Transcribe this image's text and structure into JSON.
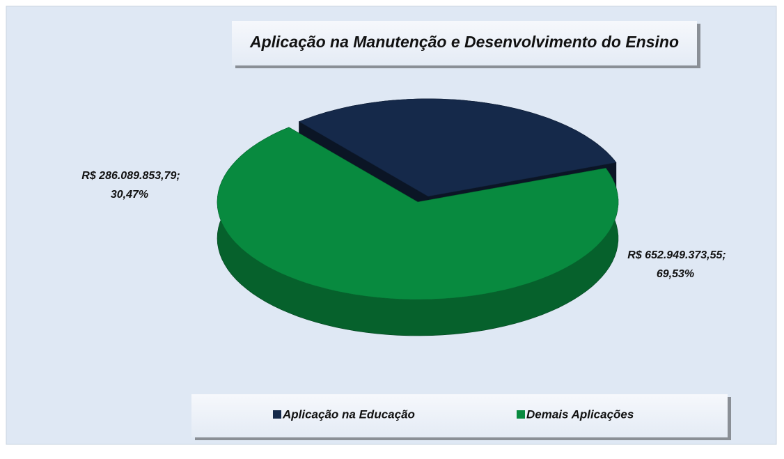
{
  "chart_data": {
    "type": "pie",
    "title": "Aplicação na Manutenção e Desenvolvimento do Ensino",
    "categories": [
      "Aplicação na Educação",
      "Demais Aplicações"
    ],
    "values": [
      286089853.79,
      652949373.55
    ],
    "value_labels": [
      "R$ 286.089.853,79;",
      "R$ 652.949.373,55;"
    ],
    "percentages": [
      30.47,
      69.53
    ],
    "percentage_labels": [
      "30,47%",
      "69,53%"
    ],
    "colors": [
      "#15294a",
      "#088a3f"
    ],
    "legend": "bottom"
  }
}
